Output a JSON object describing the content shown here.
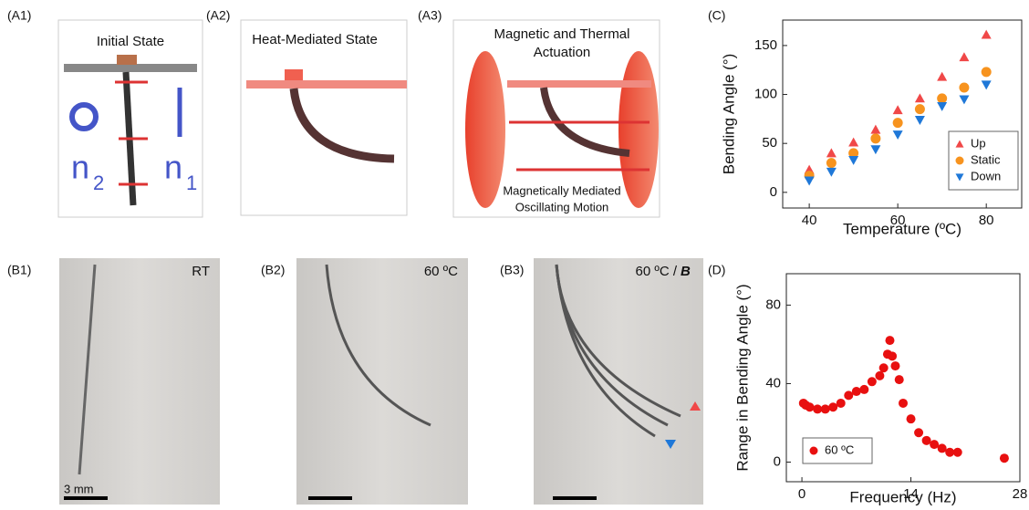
{
  "panels": {
    "A1": {
      "tag": "(A1)",
      "title": "Initial State",
      "n_a": "n",
      "sub_a": "2",
      "n_b": "n",
      "sub_b": "1"
    },
    "A2": {
      "tag": "(A2)",
      "title": "Heat-Mediated State"
    },
    "A3": {
      "tag": "(A3)",
      "title_1": "Magnetic and Thermal",
      "title_2": "Actuation",
      "caption_1": "Magnetically Mediated",
      "caption_2": "Oscillating Motion"
    },
    "B1": {
      "tag": "(B1)",
      "label": "RT",
      "scale": "3 mm"
    },
    "B2": {
      "tag": "(B2)",
      "label": "60 ºC"
    },
    "B3": {
      "tag": "(B3)",
      "label": "60 ºC /",
      "field": "B"
    },
    "C": {
      "tag": "(C)"
    },
    "D": {
      "tag": "(D)"
    }
  },
  "chart_data": [
    {
      "type": "scatter",
      "x_label": "Temperature (ºC)",
      "y_label": "Bending Angle (°)",
      "x": [
        40,
        45,
        50,
        55,
        60,
        65,
        70,
        75,
        80
      ],
      "series": [
        {
          "name": "Up",
          "color": "#f04848",
          "marker": "^",
          "values": [
            23,
            40,
            51,
            64,
            84,
            96,
            118,
            138,
            161
          ]
        },
        {
          "name": "Static",
          "color": "#f7931e",
          "marker": "o",
          "values": [
            17,
            30,
            40,
            55,
            71,
            85,
            96,
            107,
            123
          ]
        },
        {
          "name": "Down",
          "color": "#1f78d8",
          "marker": "v",
          "values": [
            12,
            21,
            33,
            44,
            59,
            74,
            88,
            95,
            110
          ]
        }
      ],
      "xlim": [
        34,
        88
      ],
      "ylim": [
        -16,
        176
      ],
      "xticks": [
        40,
        60,
        80
      ],
      "yticks": [
        0,
        50,
        100,
        150
      ],
      "grid": false,
      "legend": "lower right"
    },
    {
      "type": "scatter",
      "x_label": "Frequency (Hz)",
      "y_label": "Range in Bending Angle (°)",
      "x": [
        0.2,
        0.5,
        1,
        2,
        3,
        4,
        5,
        6,
        7,
        8,
        9,
        10,
        10.5,
        11,
        11.3,
        11.6,
        12,
        12.5,
        13,
        14,
        15,
        16,
        17,
        18,
        19,
        20,
        26
      ],
      "series": [
        {
          "name": "60 ºC",
          "color": "#e81010",
          "marker": "o",
          "values": [
            30,
            29,
            28,
            27,
            27,
            28,
            30,
            34,
            36,
            37,
            41,
            44,
            48,
            55,
            62,
            54,
            49,
            42,
            30,
            22,
            15,
            11,
            9,
            7,
            5,
            5,
            2
          ]
        }
      ],
      "xlim": [
        -2,
        28
      ],
      "ylim": [
        -10,
        96
      ],
      "xticks": [
        0,
        14,
        28
      ],
      "yticks": [
        0,
        40,
        80
      ],
      "grid": false,
      "legend": "lower left"
    }
  ]
}
